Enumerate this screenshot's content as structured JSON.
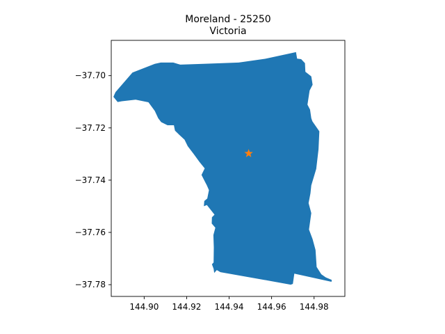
{
  "title": "Moreland - 25250",
  "subtitle": "Victoria",
  "colors": {
    "region_fill": "#1f77b4",
    "marker": "#ff7f0e",
    "axes": "#000000",
    "background": "#ffffff"
  },
  "chart_data": {
    "type": "map",
    "title": "Moreland - 25250",
    "subtitle": "Victoria",
    "xlim": [
      144.8845,
      144.9945
    ],
    "ylim": [
      -37.7845,
      -37.6865
    ],
    "x_ticks": [
      144.9,
      144.92,
      144.94,
      144.96,
      144.98
    ],
    "x_tick_labels": [
      "144.90",
      "144.92",
      "144.94",
      "144.96",
      "144.98"
    ],
    "y_ticks": [
      -37.7,
      -37.72,
      -37.74,
      -37.76,
      -37.78
    ],
    "y_tick_labels": [
      "−37.70",
      "−37.72",
      "−37.74",
      "−37.76",
      "−37.78"
    ],
    "grid": false,
    "region": {
      "name": "Moreland",
      "polygon": [
        [
          144.8855,
          -37.7081
        ],
        [
          144.8865,
          -37.7063
        ],
        [
          144.8945,
          -37.6988
        ],
        [
          144.905,
          -37.6955
        ],
        [
          144.9078,
          -37.695
        ],
        [
          144.9137,
          -37.695
        ],
        [
          144.917,
          -37.6958
        ],
        [
          144.9278,
          -37.6955
        ],
        [
          144.9445,
          -37.695
        ],
        [
          144.9573,
          -37.6935
        ],
        [
          144.9698,
          -37.6913
        ],
        [
          144.9715,
          -37.691
        ],
        [
          144.972,
          -37.6935
        ],
        [
          144.9739,
          -37.6937
        ],
        [
          144.9757,
          -37.6952
        ],
        [
          144.9759,
          -37.6985
        ],
        [
          144.9787,
          -37.7003
        ],
        [
          144.9793,
          -37.7035
        ],
        [
          144.9779,
          -37.7057
        ],
        [
          144.9769,
          -37.7111
        ],
        [
          144.9781,
          -37.713
        ],
        [
          144.9787,
          -37.7163
        ],
        [
          144.9792,
          -37.7175
        ],
        [
          144.9825,
          -37.7213
        ],
        [
          144.9821,
          -37.7282
        ],
        [
          144.981,
          -37.7357
        ],
        [
          144.9787,
          -37.742
        ],
        [
          144.9783,
          -37.745
        ],
        [
          144.9774,
          -37.7488
        ],
        [
          144.9787,
          -37.7526
        ],
        [
          144.9776,
          -37.7589
        ],
        [
          144.9793,
          -37.7626
        ],
        [
          144.9807,
          -37.7667
        ],
        [
          144.9812,
          -37.7732
        ],
        [
          144.9834,
          -37.776
        ],
        [
          144.9855,
          -37.7772
        ],
        [
          144.9883,
          -37.7782
        ],
        [
          144.9882,
          -37.7789
        ],
        [
          144.9707,
          -37.7758
        ],
        [
          144.97,
          -37.7797
        ],
        [
          144.969,
          -37.78
        ],
        [
          144.9602,
          -37.7787
        ],
        [
          144.9359,
          -37.7752
        ],
        [
          144.9342,
          -37.7744
        ],
        [
          144.933,
          -37.7755
        ],
        [
          144.9327,
          -37.7739
        ],
        [
          144.9319,
          -37.7722
        ],
        [
          144.9327,
          -37.7715
        ],
        [
          144.9328,
          -37.7658
        ],
        [
          144.9326,
          -37.761
        ],
        [
          144.9335,
          -37.7582
        ],
        [
          144.9318,
          -37.7566
        ],
        [
          144.9319,
          -37.7542
        ],
        [
          144.9331,
          -37.7532
        ],
        [
          144.931,
          -37.751
        ],
        [
          144.9295,
          -37.7495
        ],
        [
          144.9281,
          -37.75
        ],
        [
          144.9283,
          -37.748
        ],
        [
          144.9297,
          -37.747
        ],
        [
          144.9305,
          -37.7438
        ],
        [
          144.9295,
          -37.742
        ],
        [
          144.9289,
          -37.741
        ],
        [
          144.927,
          -37.738
        ],
        [
          144.9285,
          -37.7355
        ],
        [
          144.926,
          -37.733
        ],
        [
          144.9233,
          -37.73
        ],
        [
          144.9205,
          -37.727
        ],
        [
          144.919,
          -37.7245
        ],
        [
          144.9165,
          -37.7226
        ],
        [
          144.9145,
          -37.721
        ],
        [
          144.914,
          -37.719
        ],
        [
          144.911,
          -37.719
        ],
        [
          144.908,
          -37.7178
        ],
        [
          144.9066,
          -37.7163
        ],
        [
          144.905,
          -37.7135
        ],
        [
          144.902,
          -37.7102
        ],
        [
          144.896,
          -37.7092
        ],
        [
          144.8895,
          -37.7098
        ],
        [
          144.8875,
          -37.7101
        ]
      ]
    },
    "points": [
      {
        "name": "centroid",
        "x": 144.9492,
        "y": -37.7298,
        "marker": "star"
      }
    ]
  }
}
